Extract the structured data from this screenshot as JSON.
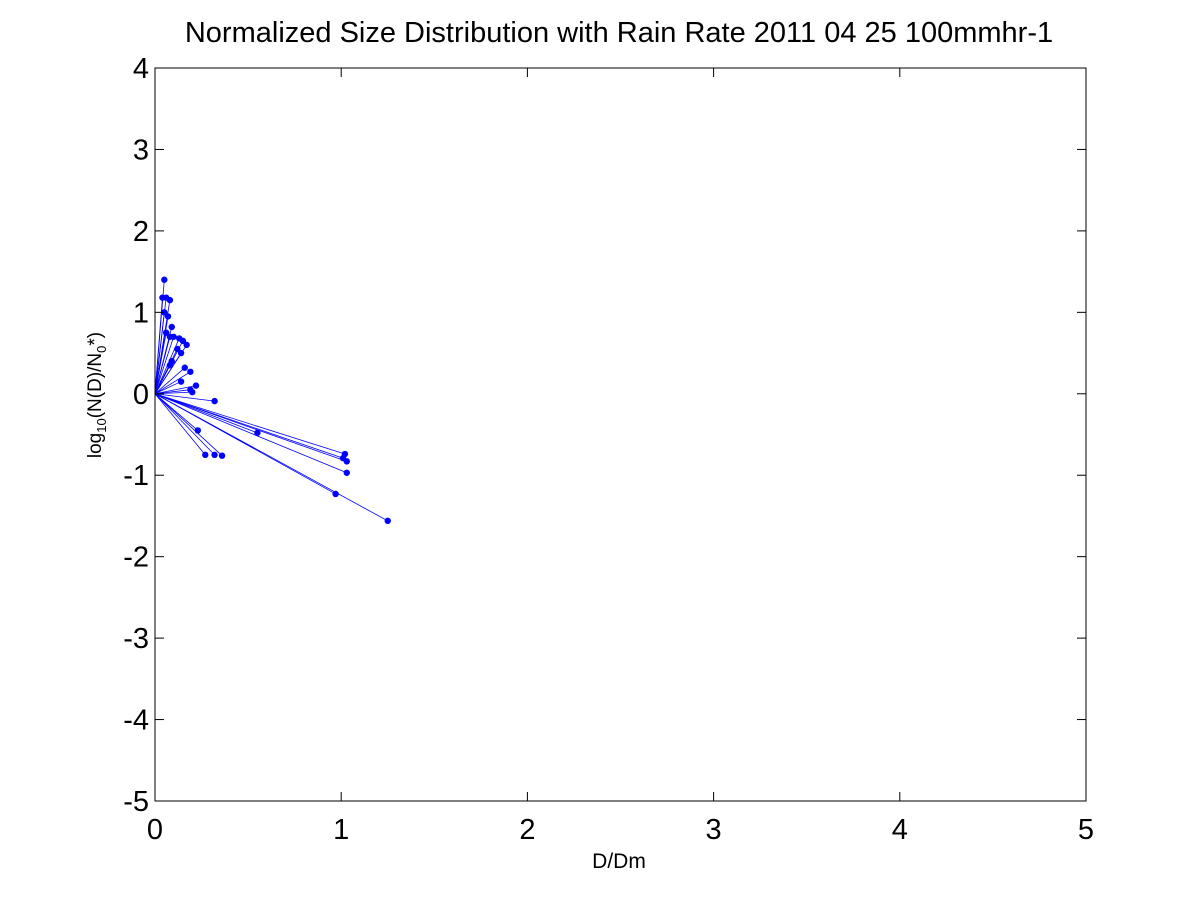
{
  "chart_data": {
    "type": "scatter",
    "title": "Normalized Size Distribution with Rain Rate 2011 04 25 100mmhr-1",
    "xlabel": "D/Dm",
    "ylabel": {
      "prefix": "log",
      "sub1": "10",
      "middle": "(N(D)/N",
      "sub2": "0",
      "suffix": "*)"
    },
    "xlim": [
      0,
      5
    ],
    "ylim": [
      -5,
      4
    ],
    "xticks": [
      0,
      1,
      2,
      3,
      4,
      5
    ],
    "yticks": [
      -5,
      -4,
      -3,
      -2,
      -1,
      0,
      1,
      2,
      3,
      4
    ],
    "grid": false,
    "legend": "none",
    "colors": {
      "series": "#0000ff",
      "axes": "#000000",
      "background": "#ffffff"
    },
    "connect_to_origin": true,
    "origin": [
      0,
      0
    ],
    "series": [
      {
        "points": [
          [
            0.05,
            1.4
          ],
          [
            0.04,
            1.18
          ],
          [
            0.06,
            1.18
          ],
          [
            0.08,
            1.15
          ],
          [
            0.05,
            1.0
          ],
          [
            0.07,
            0.95
          ],
          [
            0.09,
            0.82
          ],
          [
            0.06,
            0.75
          ],
          [
            0.1,
            0.7
          ],
          [
            0.08,
            0.7
          ],
          [
            0.13,
            0.68
          ],
          [
            0.15,
            0.65
          ],
          [
            0.17,
            0.6
          ],
          [
            0.12,
            0.55
          ],
          [
            0.14,
            0.5
          ],
          [
            0.09,
            0.4
          ],
          [
            0.08,
            0.35
          ],
          [
            0.16,
            0.32
          ],
          [
            0.19,
            0.27
          ],
          [
            0.14,
            0.15
          ],
          [
            0.22,
            0.1
          ],
          [
            0.19,
            0.05
          ],
          [
            0.2,
            0.02
          ],
          [
            0.32,
            -0.09
          ],
          [
            0.23,
            -0.45
          ],
          [
            0.55,
            -0.48
          ],
          [
            0.27,
            -0.75
          ],
          [
            0.32,
            -0.75
          ],
          [
            0.36,
            -0.76
          ],
          [
            1.02,
            -0.74
          ],
          [
            1.01,
            -0.79
          ],
          [
            1.03,
            -0.83
          ],
          [
            1.03,
            -0.97
          ],
          [
            0.97,
            -1.23
          ],
          [
            1.25,
            -1.56
          ]
        ]
      }
    ]
  }
}
